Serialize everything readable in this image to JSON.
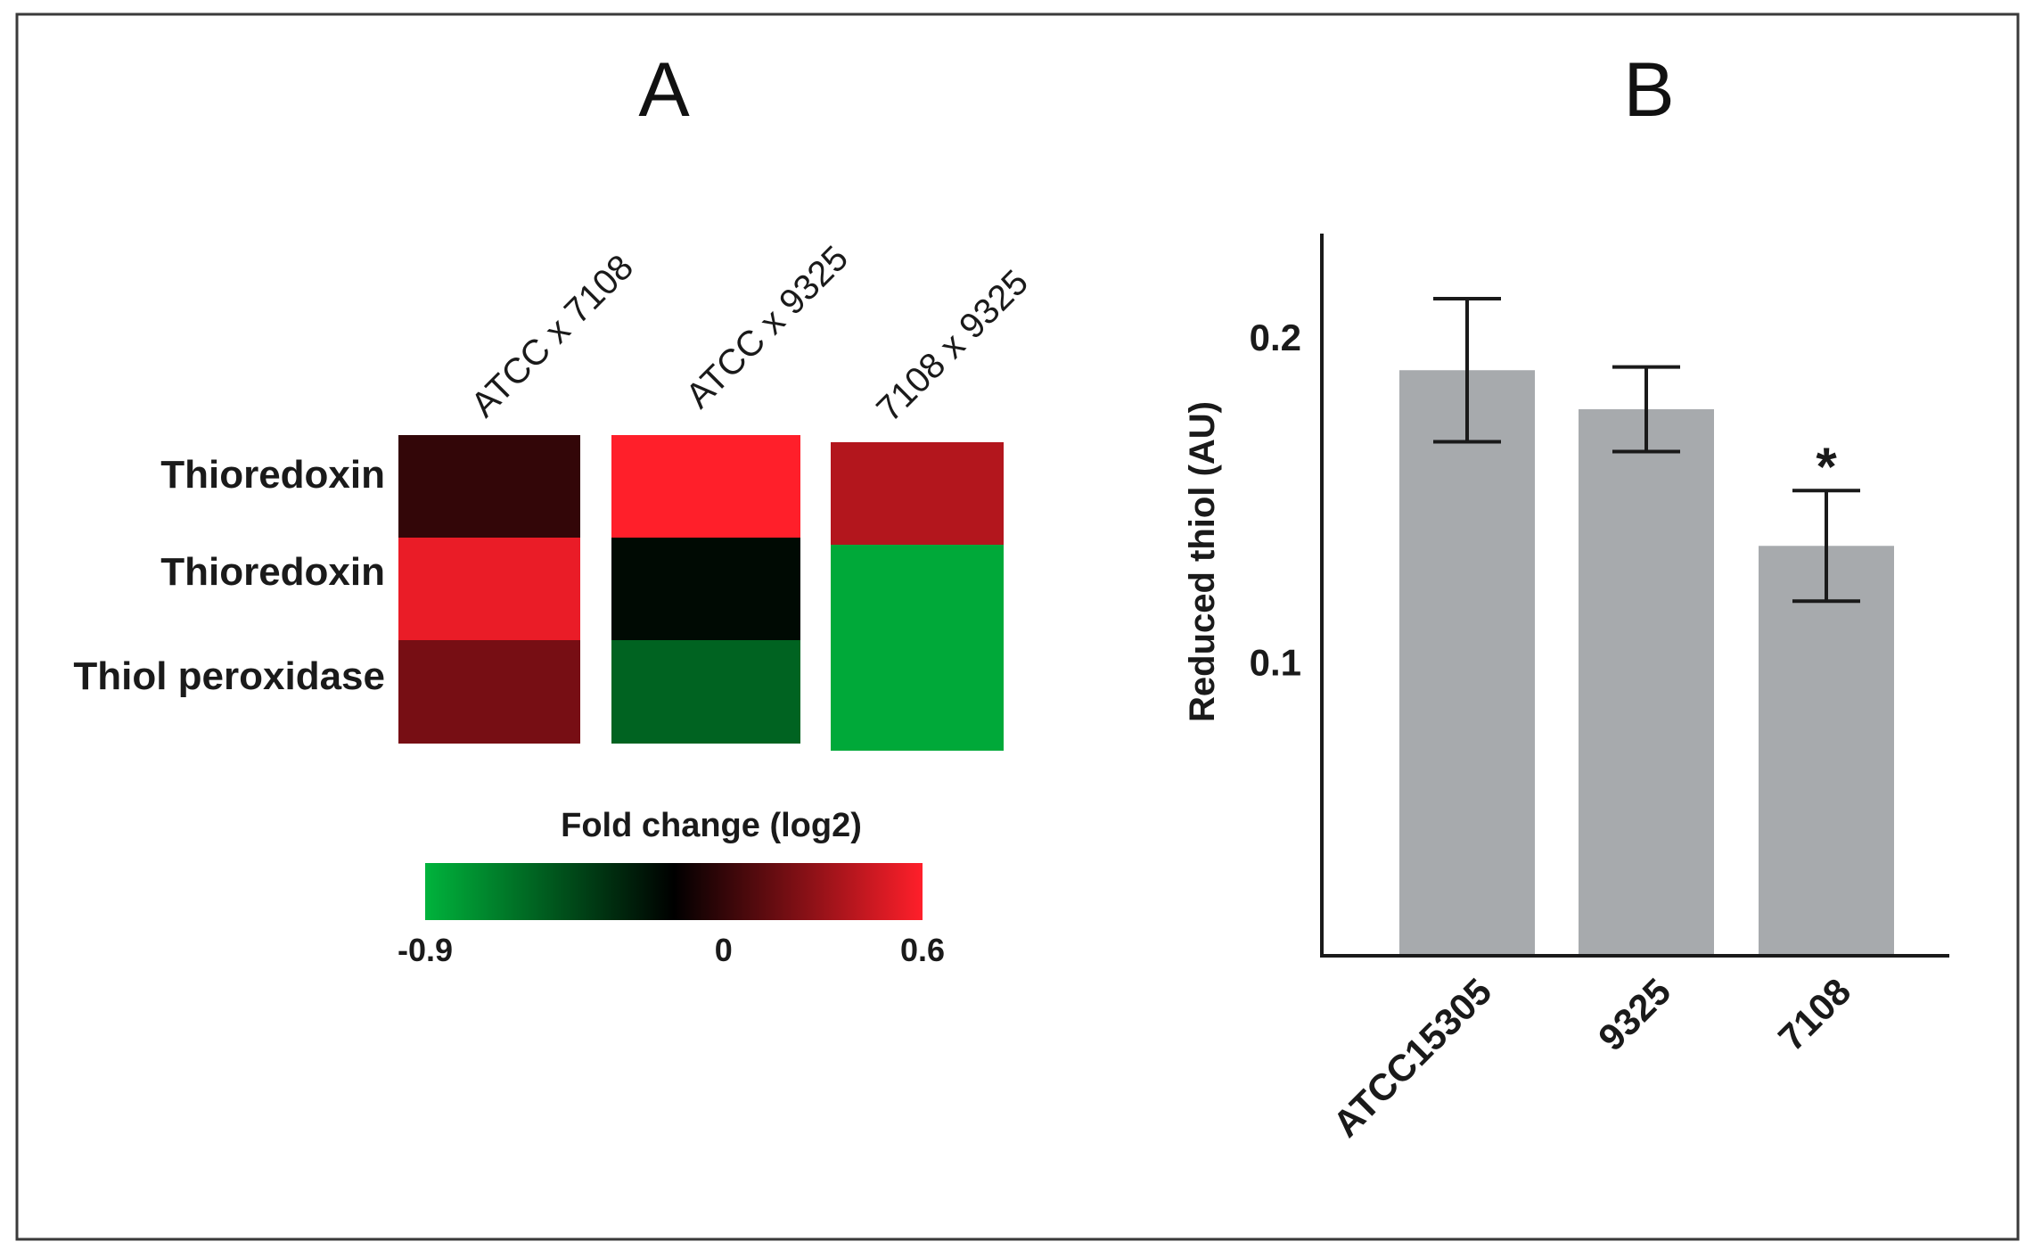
{
  "chart_data": [
    {
      "type": "heatmap",
      "panel_label": "A",
      "rows": [
        "Thioredoxin",
        "Thioredoxin",
        "Thiol peroxidase"
      ],
      "columns": [
        "ATCC x 7108",
        "ATCC x 9325",
        "7108 x 9325"
      ],
      "values": [
        [
          0.12,
          0.6,
          0.42
        ],
        [
          0.55,
          -0.05,
          -0.85
        ],
        [
          0.28,
          -0.5,
          -0.85
        ]
      ],
      "colorbar": {
        "title": "Fold change (log2)",
        "min": -0.9,
        "mid": 0,
        "max": 0.6,
        "tick_labels": [
          "-0.9",
          "0",
          "0.6"
        ],
        "colors": {
          "low": "#00b33c",
          "mid": "#000000",
          "high": "#ff1f2a"
        }
      }
    },
    {
      "type": "bar",
      "panel_label": "B",
      "categories": [
        "ATCC15305",
        "9325",
        "7108"
      ],
      "values": [
        0.19,
        0.178,
        0.136
      ],
      "errors": [
        0.022,
        0.013,
        0.017
      ],
      "annotations": [
        "",
        "",
        "*"
      ],
      "ylabel": "Reduced thiol (AU)",
      "xlabel": "",
      "ylim": [
        0.01,
        0.232
      ],
      "yticks": [
        0.1,
        0.2
      ],
      "ytick_labels": [
        "0.1",
        "0.2"
      ],
      "bar_color": "#a7aaad",
      "grid": false
    }
  ]
}
